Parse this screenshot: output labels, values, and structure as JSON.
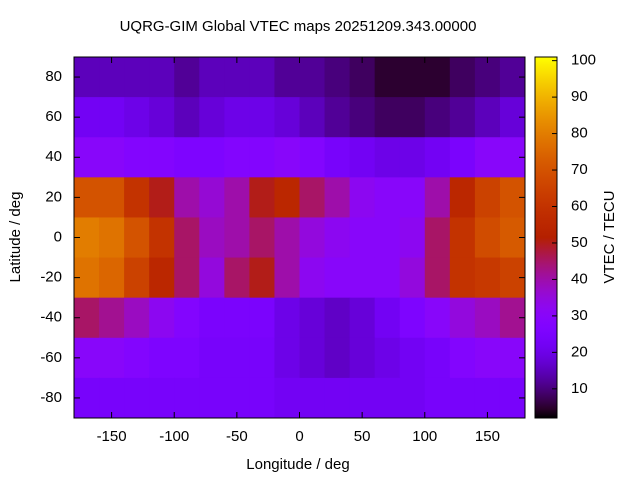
{
  "chart_data": {
    "type": "heatmap",
    "title": "UQRG-GIM Global VTEC maps 20251209.343.00000",
    "xlabel": "Longitude / deg",
    "ylabel": "Latitude / deg",
    "colorbar_label": "VTEC / TECU",
    "x": [
      -170,
      -150,
      -130,
      -110,
      -90,
      -70,
      -50,
      -30,
      -10,
      10,
      30,
      50,
      70,
      90,
      110,
      130,
      150,
      170
    ],
    "y": [
      80,
      60,
      40,
      20,
      0,
      -20,
      -40,
      -60,
      -80
    ],
    "values": [
      [
        15,
        15,
        15,
        15,
        12,
        15,
        15,
        15,
        12,
        12,
        10,
        8,
        5,
        5,
        5,
        8,
        10,
        12
      ],
      [
        22,
        22,
        20,
        18,
        15,
        18,
        20,
        20,
        18,
        15,
        12,
        10,
        8,
        8,
        10,
        12,
        15,
        18
      ],
      [
        30,
        30,
        28,
        28,
        26,
        26,
        28,
        28,
        30,
        28,
        24,
        22,
        20,
        20,
        22,
        25,
        30,
        30
      ],
      [
        70,
        70,
        60,
        50,
        40,
        36,
        40,
        50,
        55,
        45,
        40,
        32,
        30,
        30,
        40,
        55,
        65,
        70
      ],
      [
        80,
        78,
        70,
        60,
        45,
        38,
        40,
        45,
        40,
        35,
        32,
        30,
        30,
        32,
        45,
        60,
        68,
        72
      ],
      [
        78,
        75,
        65,
        55,
        45,
        35,
        45,
        50,
        40,
        32,
        30,
        30,
        30,
        35,
        45,
        60,
        62,
        65
      ],
      [
        45,
        42,
        38,
        32,
        28,
        25,
        25,
        25,
        20,
        18,
        16,
        18,
        22,
        26,
        30,
        35,
        38,
        42
      ],
      [
        30,
        30,
        28,
        26,
        26,
        24,
        24,
        24,
        20,
        18,
        16,
        18,
        20,
        22,
        24,
        28,
        30,
        30
      ],
      [
        24,
        24,
        24,
        24,
        24,
        24,
        24,
        24,
        22,
        22,
        22,
        22,
        22,
        22,
        24,
        24,
        24,
        24
      ]
    ],
    "xlim": [
      -180,
      180
    ],
    "ylim": [
      -90,
      90
    ],
    "xticks": [
      -150,
      -100,
      -50,
      0,
      50,
      100,
      150
    ],
    "yticks": [
      -80,
      -60,
      -40,
      -20,
      0,
      20,
      40,
      60,
      80
    ],
    "clim": [
      2,
      101
    ],
    "cticks": [
      10,
      20,
      30,
      40,
      50,
      60,
      70,
      80,
      90,
      100
    ]
  }
}
